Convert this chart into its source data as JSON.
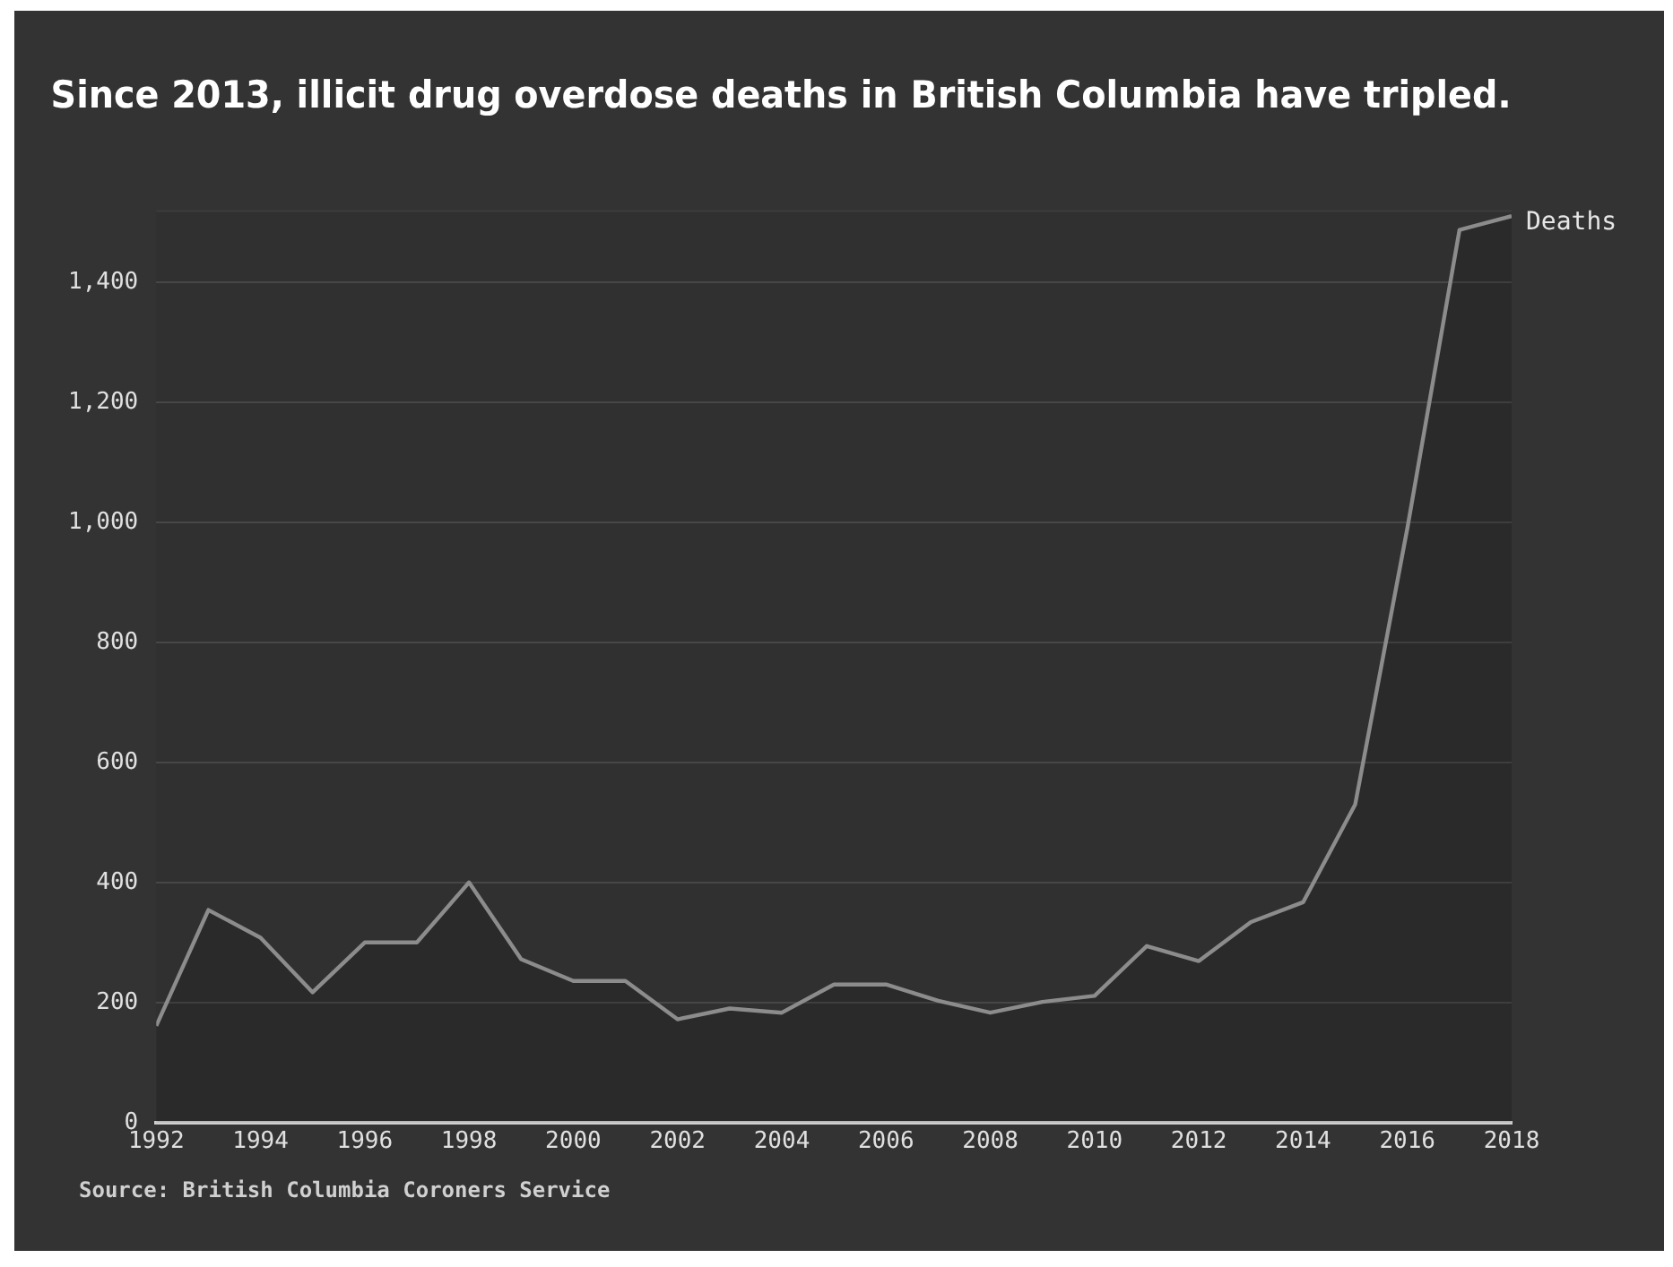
{
  "chart_data": {
    "type": "area",
    "title": "Since 2013, illicit drug overdose deaths in British Columbia have tripled.",
    "x": [
      1992,
      1993,
      1994,
      1995,
      1996,
      1997,
      1998,
      1999,
      2000,
      2001,
      2002,
      2003,
      2004,
      2005,
      2006,
      2007,
      2008,
      2009,
      2010,
      2011,
      2012,
      2013,
      2014,
      2015,
      2016,
      2017,
      2018
    ],
    "series": [
      {
        "name": "Deaths",
        "color": "#8c8c8c",
        "values": [
          161,
          354,
          308,
          217,
          300,
          300,
          400,
          272,
          236,
          236,
          172,
          190,
          183,
          230,
          230,
          203,
          183,
          201,
          211,
          294,
          269,
          334,
          367,
          530,
          990,
          1487,
          1510
        ]
      }
    ],
    "xlim": [
      1992,
      2018
    ],
    "xticks": [
      1992,
      1994,
      1996,
      1998,
      2000,
      2002,
      2004,
      2006,
      2008,
      2010,
      2012,
      2014,
      2016,
      2018
    ],
    "ylim": [
      0,
      1520
    ],
    "yticks": [
      0,
      {
        "value": 200,
        "label": "200"
      },
      {
        "value": 400,
        "label": "400"
      },
      {
        "value": 600,
        "label": "600"
      },
      {
        "value": 800,
        "label": "800"
      },
      {
        "value": 1000,
        "label": "1,000"
      },
      {
        "value": 1200,
        "label": "1,200"
      },
      {
        "value": 1400,
        "label": "1,400"
      }
    ],
    "grid": "y",
    "legend": false,
    "annotations": [
      "Source: British Columbia Coroners Service"
    ]
  }
}
